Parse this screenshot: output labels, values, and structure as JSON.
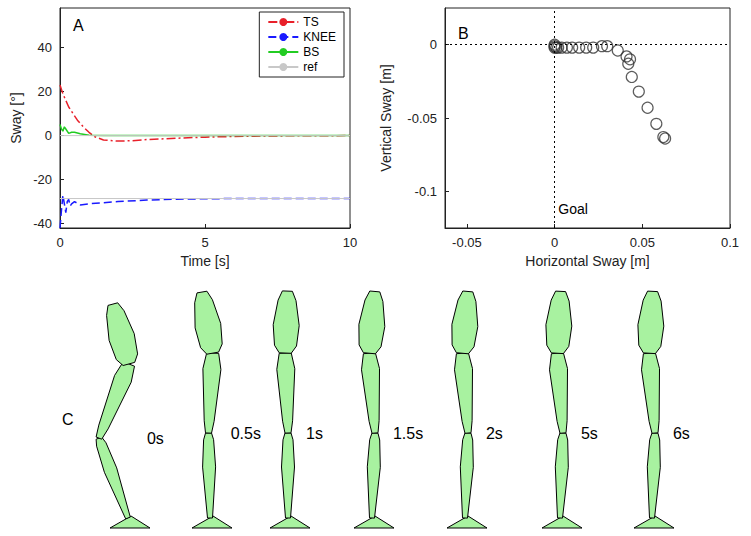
{
  "chart_data": [
    {
      "type": "line",
      "title": "A",
      "x_label": "Time [s]",
      "y_label": "Sway [°]",
      "xlim": [
        0,
        10
      ],
      "xticks": [
        0,
        5,
        10
      ],
      "ylim": [
        -42,
        58
      ],
      "yticks": [
        -40,
        -20,
        0,
        20,
        40
      ],
      "grid": false,
      "legend": "upper right",
      "series": [
        {
          "name": "TS",
          "color": "#e8202a",
          "line_style": "dashdot",
          "x": [
            0,
            0.05,
            0.1,
            0.2,
            0.3,
            0.4,
            0.5,
            0.6,
            0.8,
            1,
            1.2,
            1.5,
            2,
            2.5,
            3,
            4,
            5,
            6,
            7,
            8,
            10
          ],
          "values": [
            23,
            21,
            19,
            16,
            13,
            11,
            9,
            7,
            4,
            1.5,
            -0.5,
            -2,
            -2.5,
            -2.3,
            -1.8,
            -1.2,
            -0.7,
            -0.4,
            -0.2,
            -0.1,
            0
          ]
        },
        {
          "name": "KNEE",
          "color": "#1a1aff",
          "line_style": "dashed",
          "x": [
            0,
            0.05,
            0.1,
            0.15,
            0.2,
            0.25,
            0.3,
            0.35,
            0.4,
            0.5,
            0.7,
            1,
            1.5,
            2,
            3,
            4,
            5,
            6,
            8,
            10
          ],
          "values": [
            -42,
            -34,
            -27,
            -31,
            -35,
            -30,
            -29,
            -32,
            -31,
            -30,
            -31.5,
            -31,
            -30.5,
            -30,
            -29.3,
            -28.9,
            -28.7,
            -28.6,
            -28.6,
            -28.6
          ]
        },
        {
          "name": "BS",
          "color": "#22cc22",
          "line_style": "solid",
          "x": [
            0,
            0.05,
            0.1,
            0.15,
            0.2,
            0.3,
            0.4,
            0.5,
            0.7,
            1,
            1.5,
            2,
            5,
            10
          ],
          "values": [
            5,
            3,
            2,
            4,
            3,
            1,
            1.5,
            1.5,
            0.8,
            0.2,
            0,
            0,
            0,
            0
          ]
        },
        {
          "name": "ref",
          "color": "#c8c8c8",
          "line_style": "solid",
          "x": [
            0,
            10,
            5,
            0,
            10
          ],
          "values": [
            0,
            0,
            null,
            -28.6,
            -28.6
          ]
        }
      ]
    },
    {
      "type": "scatter",
      "title": "B",
      "x_label": "Horizontal Sway [m]",
      "y_label": "Vertical Sway [m]",
      "xlim": [
        -0.0625,
        0.1
      ],
      "xticks": [
        -0.05,
        0,
        0.05,
        0.1
      ],
      "ylim": [
        -0.125,
        0.025
      ],
      "yticks": [
        -0.1,
        -0.05,
        0
      ],
      "grid": false,
      "color": "#333333",
      "marker": "open_circle",
      "reference_lines": {
        "x": 0,
        "y": 0
      },
      "annotations": [
        {
          "text": "Goal",
          "x": 0.001,
          "y": -0.112
        }
      ],
      "x": [
        0.063,
        0.062,
        0.058,
        0.053,
        0.048,
        0.044,
        0.042,
        0.043,
        0.041,
        0.036,
        0.03,
        0.027,
        0.022,
        0.018,
        0.014,
        0.01,
        0.007,
        0.004,
        0.002,
        0.001,
        0,
        0,
        0
      ],
      "values": [
        -0.064,
        -0.063,
        -0.054,
        -0.043,
        -0.032,
        -0.022,
        -0.013,
        -0.01,
        -0.008,
        -0.004,
        -0.001,
        -0.001,
        -0.002,
        -0.002,
        -0.002,
        -0.002,
        -0.002,
        -0.002,
        -0.002,
        -0.002,
        -0.002,
        -0.001,
        0
      ]
    }
  ],
  "poses": {
    "title": "C",
    "labels": [
      "0s",
      "0.5s",
      "1s",
      "1.5s",
      "2s",
      "5s",
      "6s"
    ],
    "shank": [
      -20,
      -1,
      0,
      2,
      2,
      2,
      2
    ],
    "thigh": [
      22,
      3,
      -2,
      -4,
      -4,
      -4,
      -4
    ],
    "trunk": [
      -15,
      -10,
      2,
      5,
      5,
      3,
      3
    ]
  }
}
